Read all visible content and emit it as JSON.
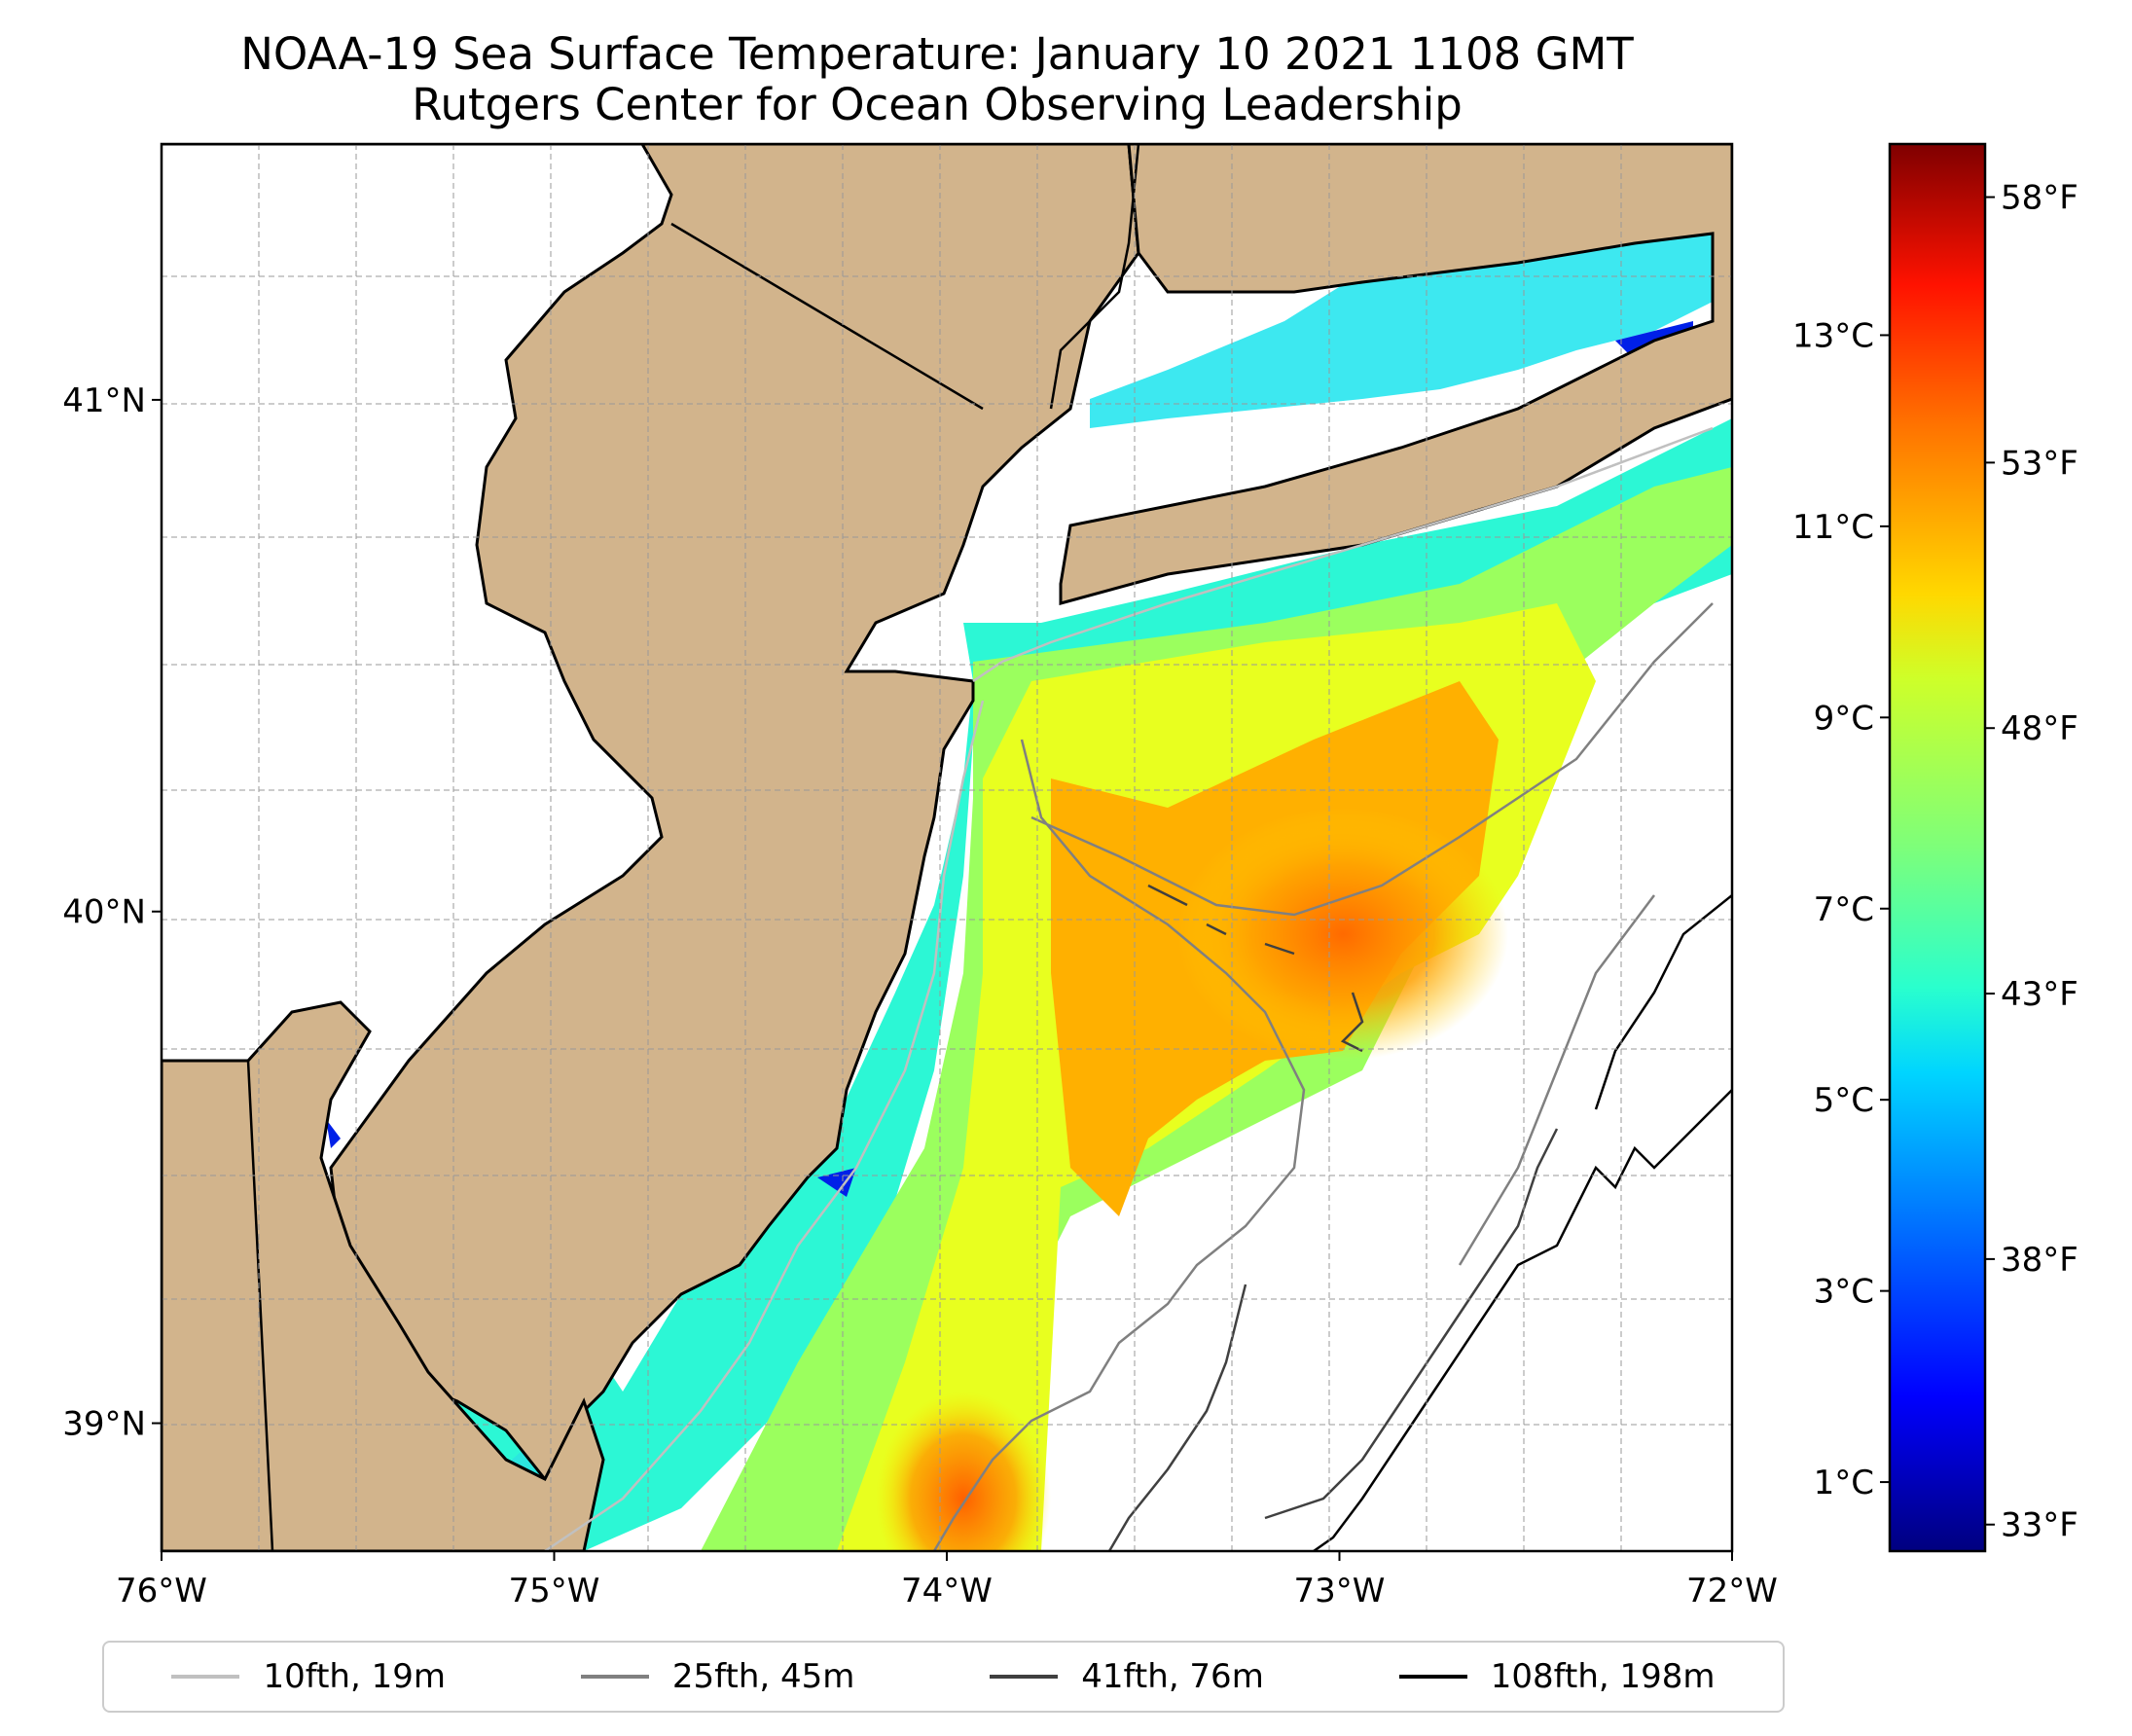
{
  "title": "NOAA-19 Sea Surface Temperature: January 10 2021 1108 GMT",
  "subtitle": "Rutgers Center for Ocean Observing Leadership",
  "map": {
    "extent": {
      "lon": [
        -76,
        -72
      ],
      "lat": [
        38.75,
        41.5
      ]
    },
    "land_color": "#d2b48c",
    "x_ticks": [
      "76°W",
      "75°W",
      "74°W",
      "73°W",
      "72°W"
    ],
    "x_tick_values": [
      -76,
      -75,
      -74,
      -73,
      -72
    ],
    "y_ticks": [
      "39°N",
      "40°N",
      "41°N"
    ],
    "y_tick_values": [
      39,
      40,
      41
    ],
    "grid": true
  },
  "colorbar": {
    "celsius_ticks": [
      "1°C",
      "3°C",
      "5°C",
      "7°C",
      "9°C",
      "11°C",
      "13°C"
    ],
    "celsius_values": [
      1,
      3,
      5,
      7,
      9,
      11,
      13
    ],
    "fahrenheit_ticks": [
      "33°F",
      "38°F",
      "43°F",
      "48°F",
      "53°F",
      "58°F"
    ],
    "fahrenheit_values": [
      33,
      38,
      43,
      48,
      53,
      58
    ],
    "range_f": [
      32.5,
      59
    ],
    "colormap": "jet"
  },
  "legend": [
    {
      "label": "10fth, 19m",
      "color": "#c0c0c0"
    },
    {
      "label": "25fth, 45m",
      "color": "#808080"
    },
    {
      "label": "41fth, 76m",
      "color": "#404040"
    },
    {
      "label": "108fth, 198m",
      "color": "#000000"
    }
  ]
}
